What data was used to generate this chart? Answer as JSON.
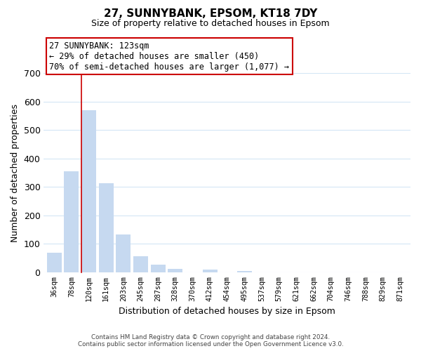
{
  "title": "27, SUNNYBANK, EPSOM, KT18 7DY",
  "subtitle": "Size of property relative to detached houses in Epsom",
  "xlabel": "Distribution of detached houses by size in Epsom",
  "ylabel": "Number of detached properties",
  "bar_labels": [
    "36sqm",
    "78sqm",
    "120sqm",
    "161sqm",
    "203sqm",
    "245sqm",
    "287sqm",
    "328sqm",
    "370sqm",
    "412sqm",
    "454sqm",
    "495sqm",
    "537sqm",
    "579sqm",
    "621sqm",
    "662sqm",
    "704sqm",
    "746sqm",
    "788sqm",
    "829sqm",
    "871sqm"
  ],
  "bar_values": [
    68,
    355,
    570,
    313,
    133,
    57,
    27,
    13,
    0,
    10,
    0,
    4,
    0,
    0,
    0,
    0,
    0,
    0,
    0,
    0,
    0
  ],
  "bar_color": "#c6d9f0",
  "highlight_index": 2,
  "highlight_line_color": "#cc0000",
  "ylim": [
    0,
    700
  ],
  "yticks": [
    0,
    100,
    200,
    300,
    400,
    500,
    600,
    700
  ],
  "annotation_title": "27 SUNNYBANK: 123sqm",
  "annotation_line1": "← 29% of detached houses are smaller (450)",
  "annotation_line2": "70% of semi-detached houses are larger (1,077) →",
  "annotation_box_color": "#ffffff",
  "annotation_box_edge": "#cc0000",
  "footer_line1": "Contains HM Land Registry data © Crown copyright and database right 2024.",
  "footer_line2": "Contains public sector information licensed under the Open Government Licence v3.0.",
  "grid_color": "#d4e6f5",
  "background_color": "#ffffff"
}
